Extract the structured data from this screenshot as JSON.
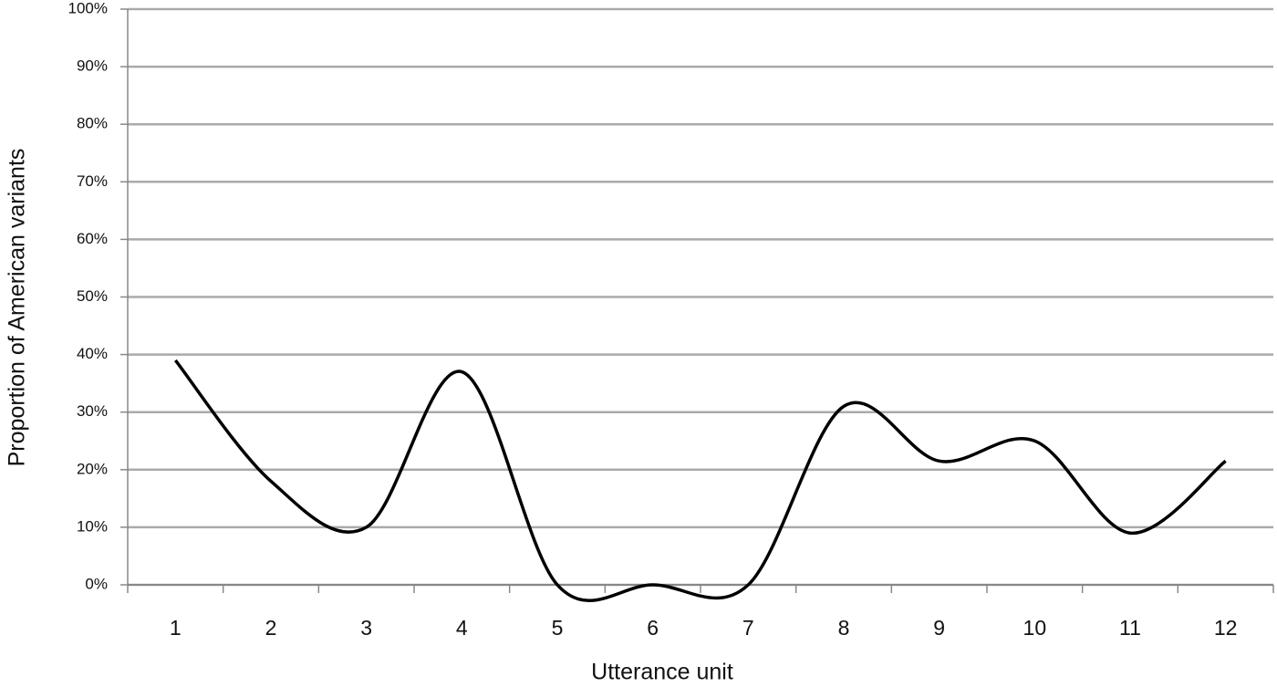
{
  "chart_data": {
    "type": "line",
    "x_label": "Utterance unit",
    "y_label": "Proportion of American variants",
    "categories": [
      "1",
      "2",
      "3",
      "4",
      "5",
      "6",
      "7",
      "8",
      "9",
      "10",
      "11",
      "12"
    ],
    "series": [
      {
        "color": "#000000",
        "values": [
          39,
          18,
          10,
          37,
          0,
          0,
          0,
          31,
          21.5,
          25,
          9,
          21.5
        ]
      }
    ],
    "ylim": [
      0,
      100
    ],
    "yticks": [
      {
        "value": 0,
        "label": "0%"
      },
      {
        "value": 10,
        "label": "10%"
      },
      {
        "value": 20,
        "label": "20%"
      },
      {
        "value": 30,
        "label": "30%"
      },
      {
        "value": 40,
        "label": "40%"
      },
      {
        "value": 50,
        "label": "50%"
      },
      {
        "value": 60,
        "label": "60%"
      },
      {
        "value": 70,
        "label": "70%"
      },
      {
        "value": 80,
        "label": "80%"
      },
      {
        "value": 90,
        "label": "90%"
      },
      {
        "value": 100,
        "label": "100%"
      }
    ],
    "grid": true,
    "smooth": true
  }
}
